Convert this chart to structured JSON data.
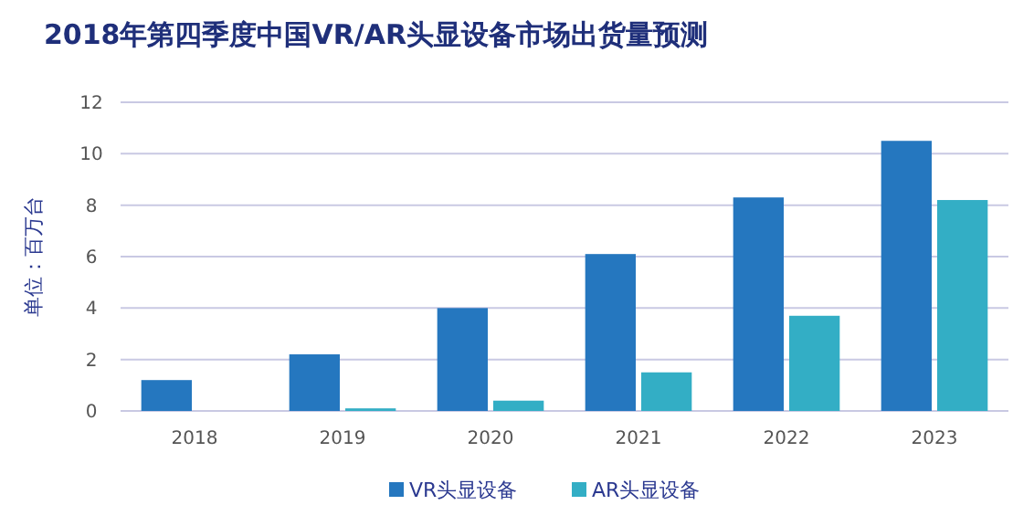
{
  "chart_data": {
    "type": "bar",
    "title": "2018年第四季度中国VR/AR头显设备市场出货量预测",
    "ylabel": "单位：百万台",
    "categories": [
      "2018",
      "2019",
      "2020",
      "2021",
      "2022",
      "2023"
    ],
    "series": [
      {
        "name": "VR头显设备",
        "color": "#2577bf",
        "values": [
          1.2,
          2.2,
          4.0,
          6.1,
          8.3,
          10.5
        ]
      },
      {
        "name": "AR头显设备",
        "color": "#33aec5",
        "values": [
          0,
          0.1,
          0.4,
          1.5,
          3.7,
          8.2
        ]
      }
    ],
    "ylim": [
      0,
      12
    ],
    "yticks": [
      0,
      2,
      4,
      6,
      8,
      10,
      12
    ],
    "grid": "y",
    "legend": "bottom"
  }
}
